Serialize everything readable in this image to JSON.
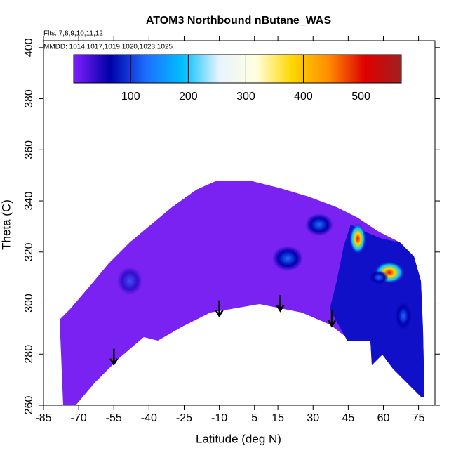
{
  "chart_data": {
    "type": "contour",
    "title": "ATOM3 Northbound nButane_WAS",
    "annotations": [
      "Flts: 7,8,9,10,11,12",
      "MMDD: 1014,1017,1019,1020,1023,1025"
    ],
    "xlabel": "Latitude (deg N)",
    "ylabel": "Theta (C)",
    "xlim": [
      -85,
      82
    ],
    "ylim": [
      260,
      402.7
    ],
    "xticks": [
      -85,
      -70,
      -55,
      -40,
      -25,
      -10,
      5,
      15,
      30,
      45,
      60,
      75
    ],
    "yticks": [
      260,
      280,
      300,
      320,
      340,
      360,
      380,
      400
    ],
    "colorbar": {
      "lim": [
        1,
        570
      ],
      "ticks": [
        100,
        200,
        300,
        400,
        500
      ],
      "colors": [
        "#7f1fff",
        "#0000a8",
        "#1e6fff",
        "#00bfff",
        "#e8f4ff",
        "#ffffe0",
        "#ffd700",
        "#ff8c00",
        "#e00000",
        "#a02020"
      ]
    },
    "arrows": {
      "x": [
        -55,
        -10,
        16,
        38
      ],
      "y": [
        276,
        295,
        297,
        291
      ]
    }
  }
}
